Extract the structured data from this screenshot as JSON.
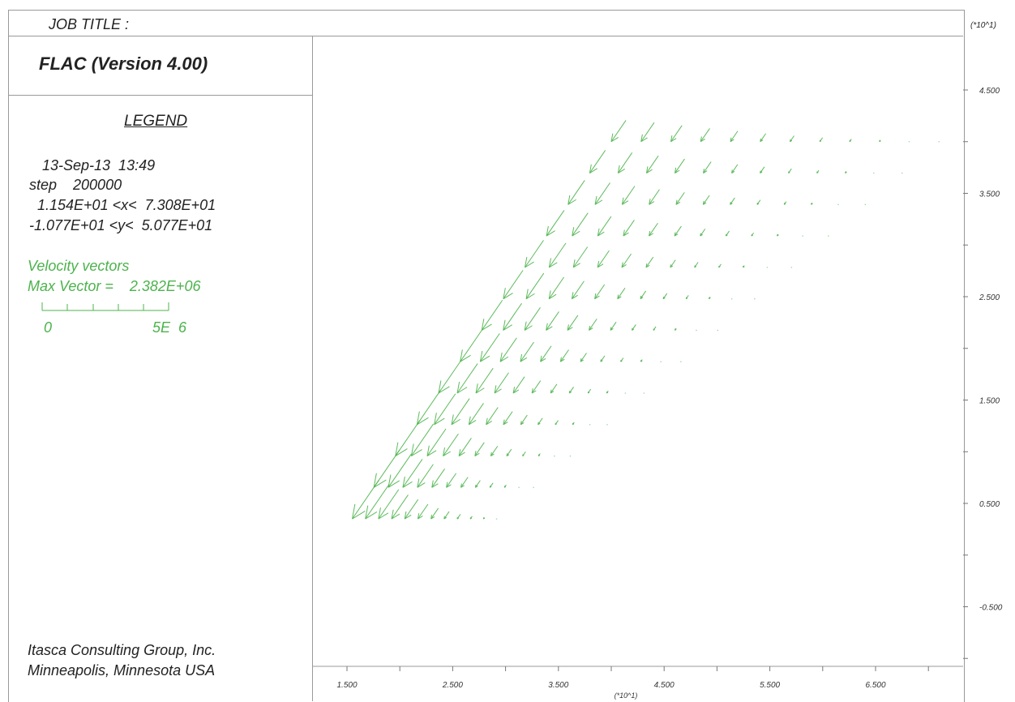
{
  "header": {
    "job_title_label": "JOB TITLE :",
    "y_exponent": "(*10^1)"
  },
  "panel": {
    "program_title": "FLAC (Version 4.00)",
    "legend_heading": "LEGEND",
    "date_time": "13-Sep-13  13:49",
    "step_line": "step    200000",
    "x_range_line": "1.154E+01 <x<  7.308E+01",
    "y_range_line": "-1.077E+01 <y<  5.077E+01",
    "vectors_label": "Velocity vectors",
    "max_vector_line": "Max Vector =    2.382E+06",
    "scale_min": "0",
    "scale_max": "5E  6",
    "company_line1": "Itasca Consulting Group, Inc.",
    "company_line2": "Minneapolis, Minnesota  USA"
  },
  "chart_data": {
    "type": "vector_field",
    "quantity": "Velocity vectors",
    "max_vector": "2.382E+06",
    "x_exponent_label": "(*10^1)",
    "y_exponent_label": "(*10^1)",
    "x_ticks": [
      "1.500",
      "2.500",
      "3.500",
      "4.500",
      "5.500",
      "6.500"
    ],
    "y_ticks": [
      "4.500",
      "3.500",
      "2.500",
      "1.500",
      "0.500",
      "-0.500"
    ],
    "xlim": [
      1.154,
      7.308
    ],
    "ylim": [
      -1.077,
      5.077
    ],
    "vector_color": "#4cb34c",
    "bottom_left_vertex": [
      1.55,
      0.35
    ],
    "bottom_right_vertex": [
      2.2,
      0.35
    ],
    "top_left_vertex": [
      4.0,
      4.0
    ],
    "top_right_vertex": [
      7.1,
      4.0
    ],
    "lines": [
      {
        "length": 5.8
      },
      {
        "length": 5.2
      },
      {
        "length": 4.4
      },
      {
        "length": 3.6
      },
      {
        "length": 2.9
      },
      {
        "length": 2.2
      },
      {
        "length": 1.6
      },
      {
        "length": 1.1
      },
      {
        "length": 0.7
      },
      {
        "length": 0.4
      },
      {
        "length": 0.2
      },
      {
        "length": 0.1
      }
    ]
  }
}
